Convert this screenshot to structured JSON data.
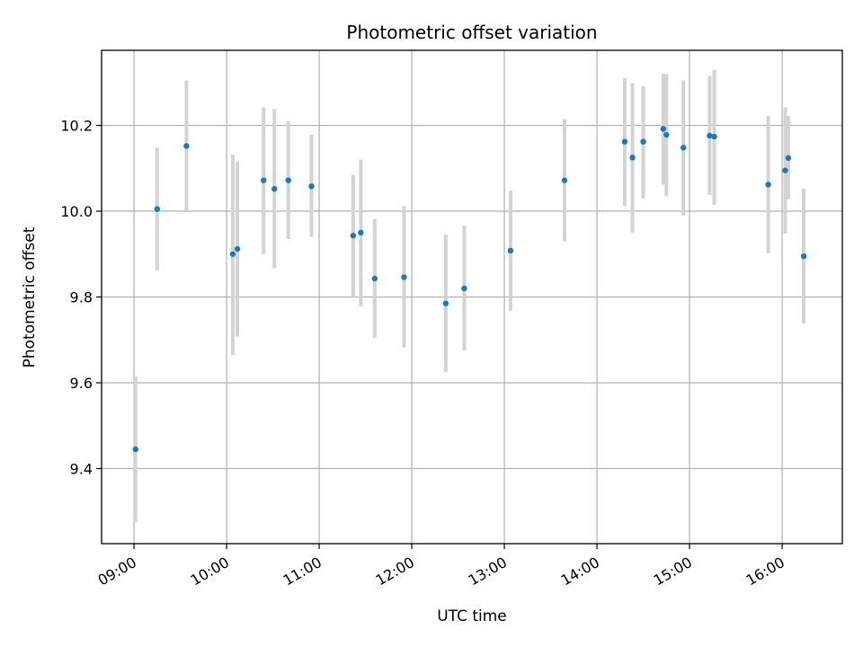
{
  "chart_data": {
    "type": "scatter",
    "title": "Photometric offset variation",
    "xlabel": "UTC time",
    "ylabel": "Photometric offset",
    "x_ticks": [
      "09:00",
      "10:00",
      "11:00",
      "12:00",
      "13:00",
      "14:00",
      "15:00",
      "16:00"
    ],
    "y_ticks": [
      "9.4",
      "9.6",
      "9.8",
      "10.0",
      "10.2"
    ],
    "xlim": [
      "08:39",
      "16:39"
    ],
    "ylim": [
      9.225,
      10.375
    ],
    "grid": true,
    "legend": "none",
    "marker_color": "#1f77b4",
    "errorbar_color": "#d3d3d3",
    "series": [
      {
        "x": [
          "09:01",
          "09:15",
          "09:34",
          "10:04",
          "10:07",
          "10:24",
          "10:31",
          "10:40",
          "10:55",
          "11:22",
          "11:27",
          "11:36",
          "11:55",
          "12:22",
          "12:34",
          "13:04",
          "13:39",
          "14:18",
          "14:23",
          "14:30",
          "14:43",
          "14:45",
          "14:56",
          "15:13",
          "15:16",
          "15:51",
          "16:02",
          "16:04",
          "16:14"
        ],
        "y": [
          9.445,
          10.005,
          10.152,
          9.9,
          9.912,
          10.072,
          10.052,
          10.072,
          10.058,
          9.943,
          9.95,
          9.843,
          9.846,
          9.785,
          9.82,
          9.908,
          10.072,
          10.162,
          10.125,
          10.162,
          10.192,
          10.178,
          10.148,
          10.176,
          10.174,
          10.062,
          10.095,
          10.124,
          9.895
        ],
        "yerr_low": [
          9.275,
          9.862,
          10.002,
          9.665,
          9.708,
          9.9,
          9.867,
          9.935,
          9.94,
          9.8,
          9.778,
          9.705,
          9.682,
          9.625,
          9.675,
          9.768,
          9.93,
          10.012,
          9.95,
          10.03,
          10.062,
          10.035,
          9.99,
          10.038,
          10.015,
          9.902,
          9.948,
          10.028,
          9.738
        ],
        "yerr_high": [
          9.615,
          10.148,
          10.305,
          10.132,
          10.115,
          10.242,
          10.238,
          10.21,
          10.178,
          10.085,
          10.12,
          9.982,
          10.012,
          9.945,
          9.966,
          10.048,
          10.215,
          10.31,
          10.298,
          10.292,
          10.32,
          10.32,
          10.305,
          10.315,
          10.33,
          10.222,
          10.242,
          10.222,
          10.052
        ]
      }
    ]
  }
}
